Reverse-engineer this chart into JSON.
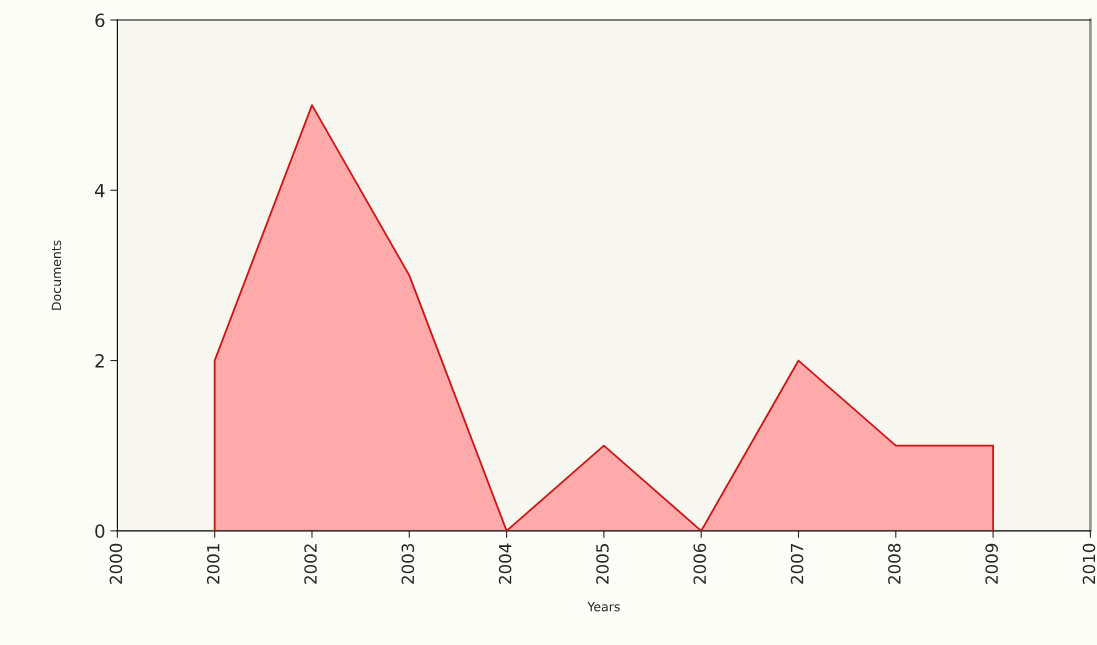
{
  "chart_data": {
    "type": "area",
    "xlabel": "Years",
    "ylabel": "Documents",
    "x": [
      2001,
      2002,
      2003,
      2004,
      2005,
      2006,
      2007,
      2008,
      2009
    ],
    "series": [
      {
        "color": "#ffaaaa",
        "values": [
          2,
          5,
          3,
          0,
          1,
          0,
          2,
          1,
          1
        ]
      }
    ],
    "xlim": [
      2000,
      2010
    ],
    "xticks": [
      2000,
      2001,
      2002,
      2003,
      2004,
      2005,
      2006,
      2007,
      2008,
      2009,
      2010
    ],
    "ylim": [
      0,
      6
    ],
    "yticks": [
      0,
      2,
      4,
      6
    ],
    "grid": false,
    "legend": false
  }
}
